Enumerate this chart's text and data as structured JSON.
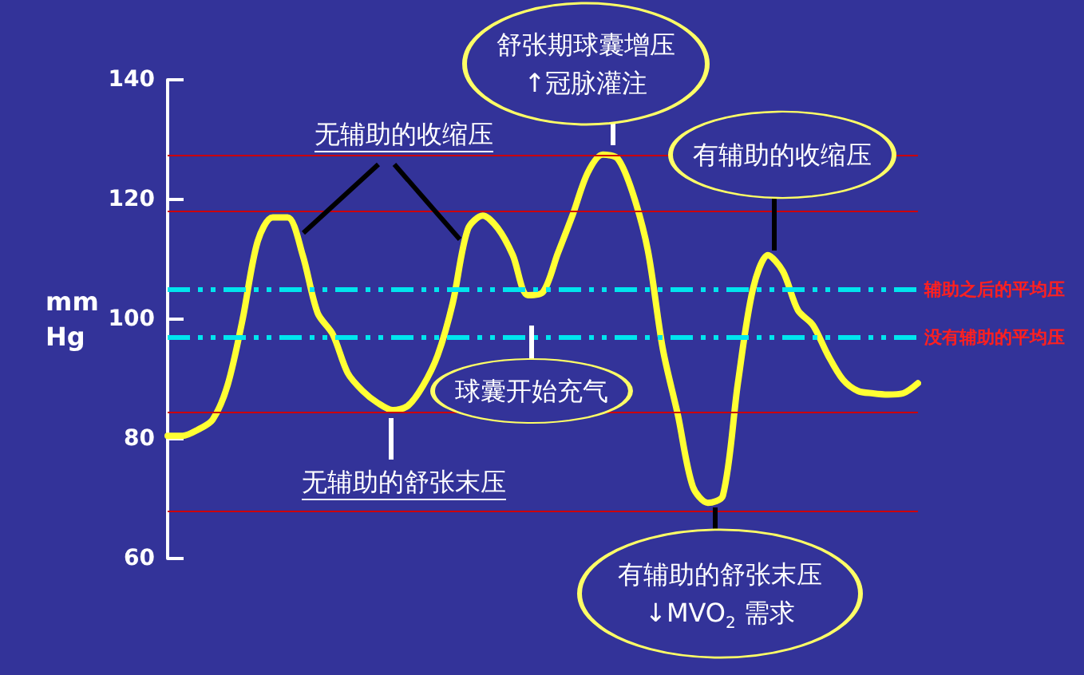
{
  "chart_data": {
    "type": "line",
    "ylabel": "mm Hg",
    "categories": [
      null,
      null,
      null,
      null,
      null,
      null,
      null,
      null,
      null,
      null,
      null,
      null,
      null,
      null,
      null,
      null,
      null,
      null,
      null,
      null,
      null,
      null,
      null,
      null,
      null,
      null,
      null,
      null,
      null,
      null,
      null,
      null,
      null,
      null,
      null,
      null,
      null,
      null,
      null,
      null,
      null,
      null,
      null,
      null,
      null,
      null,
      null,
      null,
      null,
      null,
      null
    ],
    "series": [
      {
        "color": "#ffff33",
        "values": [
          80.5,
          80.5,
          81.5,
          83.2,
          89,
          100,
          113,
          117,
          117,
          110.7,
          101,
          97.5,
          91,
          88,
          86,
          84.8,
          85.5,
          88.8,
          94,
          102.7,
          115,
          117.3,
          115.2,
          110.7,
          104,
          104.5,
          111,
          117.5,
          124.5,
          127.5,
          126.8,
          121,
          111.5,
          95,
          84,
          72,
          69.3,
          70.5,
          89.3,
          105,
          110.7,
          108,
          101.5,
          99,
          94,
          89.9,
          88,
          87.6,
          87.4,
          87.6,
          89.3
        ]
      }
    ],
    "ylim": [
      60,
      140
    ],
    "yticks": [
      60,
      80,
      100,
      120,
      140
    ],
    "tick_labels": "y",
    "grid": false,
    "ref_lines": [
      {
        "axis": "y",
        "value": 127.5,
        "color": "#cc0000",
        "line_style": "solid"
      },
      {
        "axis": "y",
        "value": 118,
        "color": "#cc0000",
        "line_style": "solid"
      },
      {
        "axis": "y",
        "value": 84.5,
        "color": "#cc0000",
        "line_style": "solid"
      },
      {
        "axis": "y",
        "value": 68,
        "color": "#cc0000",
        "line_style": "solid"
      },
      {
        "axis": "y",
        "value": 105,
        "label": "辅助之后的平均压",
        "color": "#00e5ee",
        "line_style": "dashed"
      },
      {
        "axis": "y",
        "value": 97,
        "label": "没有辅助的平均压",
        "color": "#00e5ee",
        "line_style": "dashed"
      }
    ],
    "annotations": [
      "无辅助的收缩压",
      "无辅助的舒张末压",
      "球囊开始充气",
      "舒张期球囊增压\n↑冠脉灌注",
      "有辅助的收缩压",
      "有辅助的舒张末压\n↓MVO$_{2}$ 需求"
    ]
  }
}
